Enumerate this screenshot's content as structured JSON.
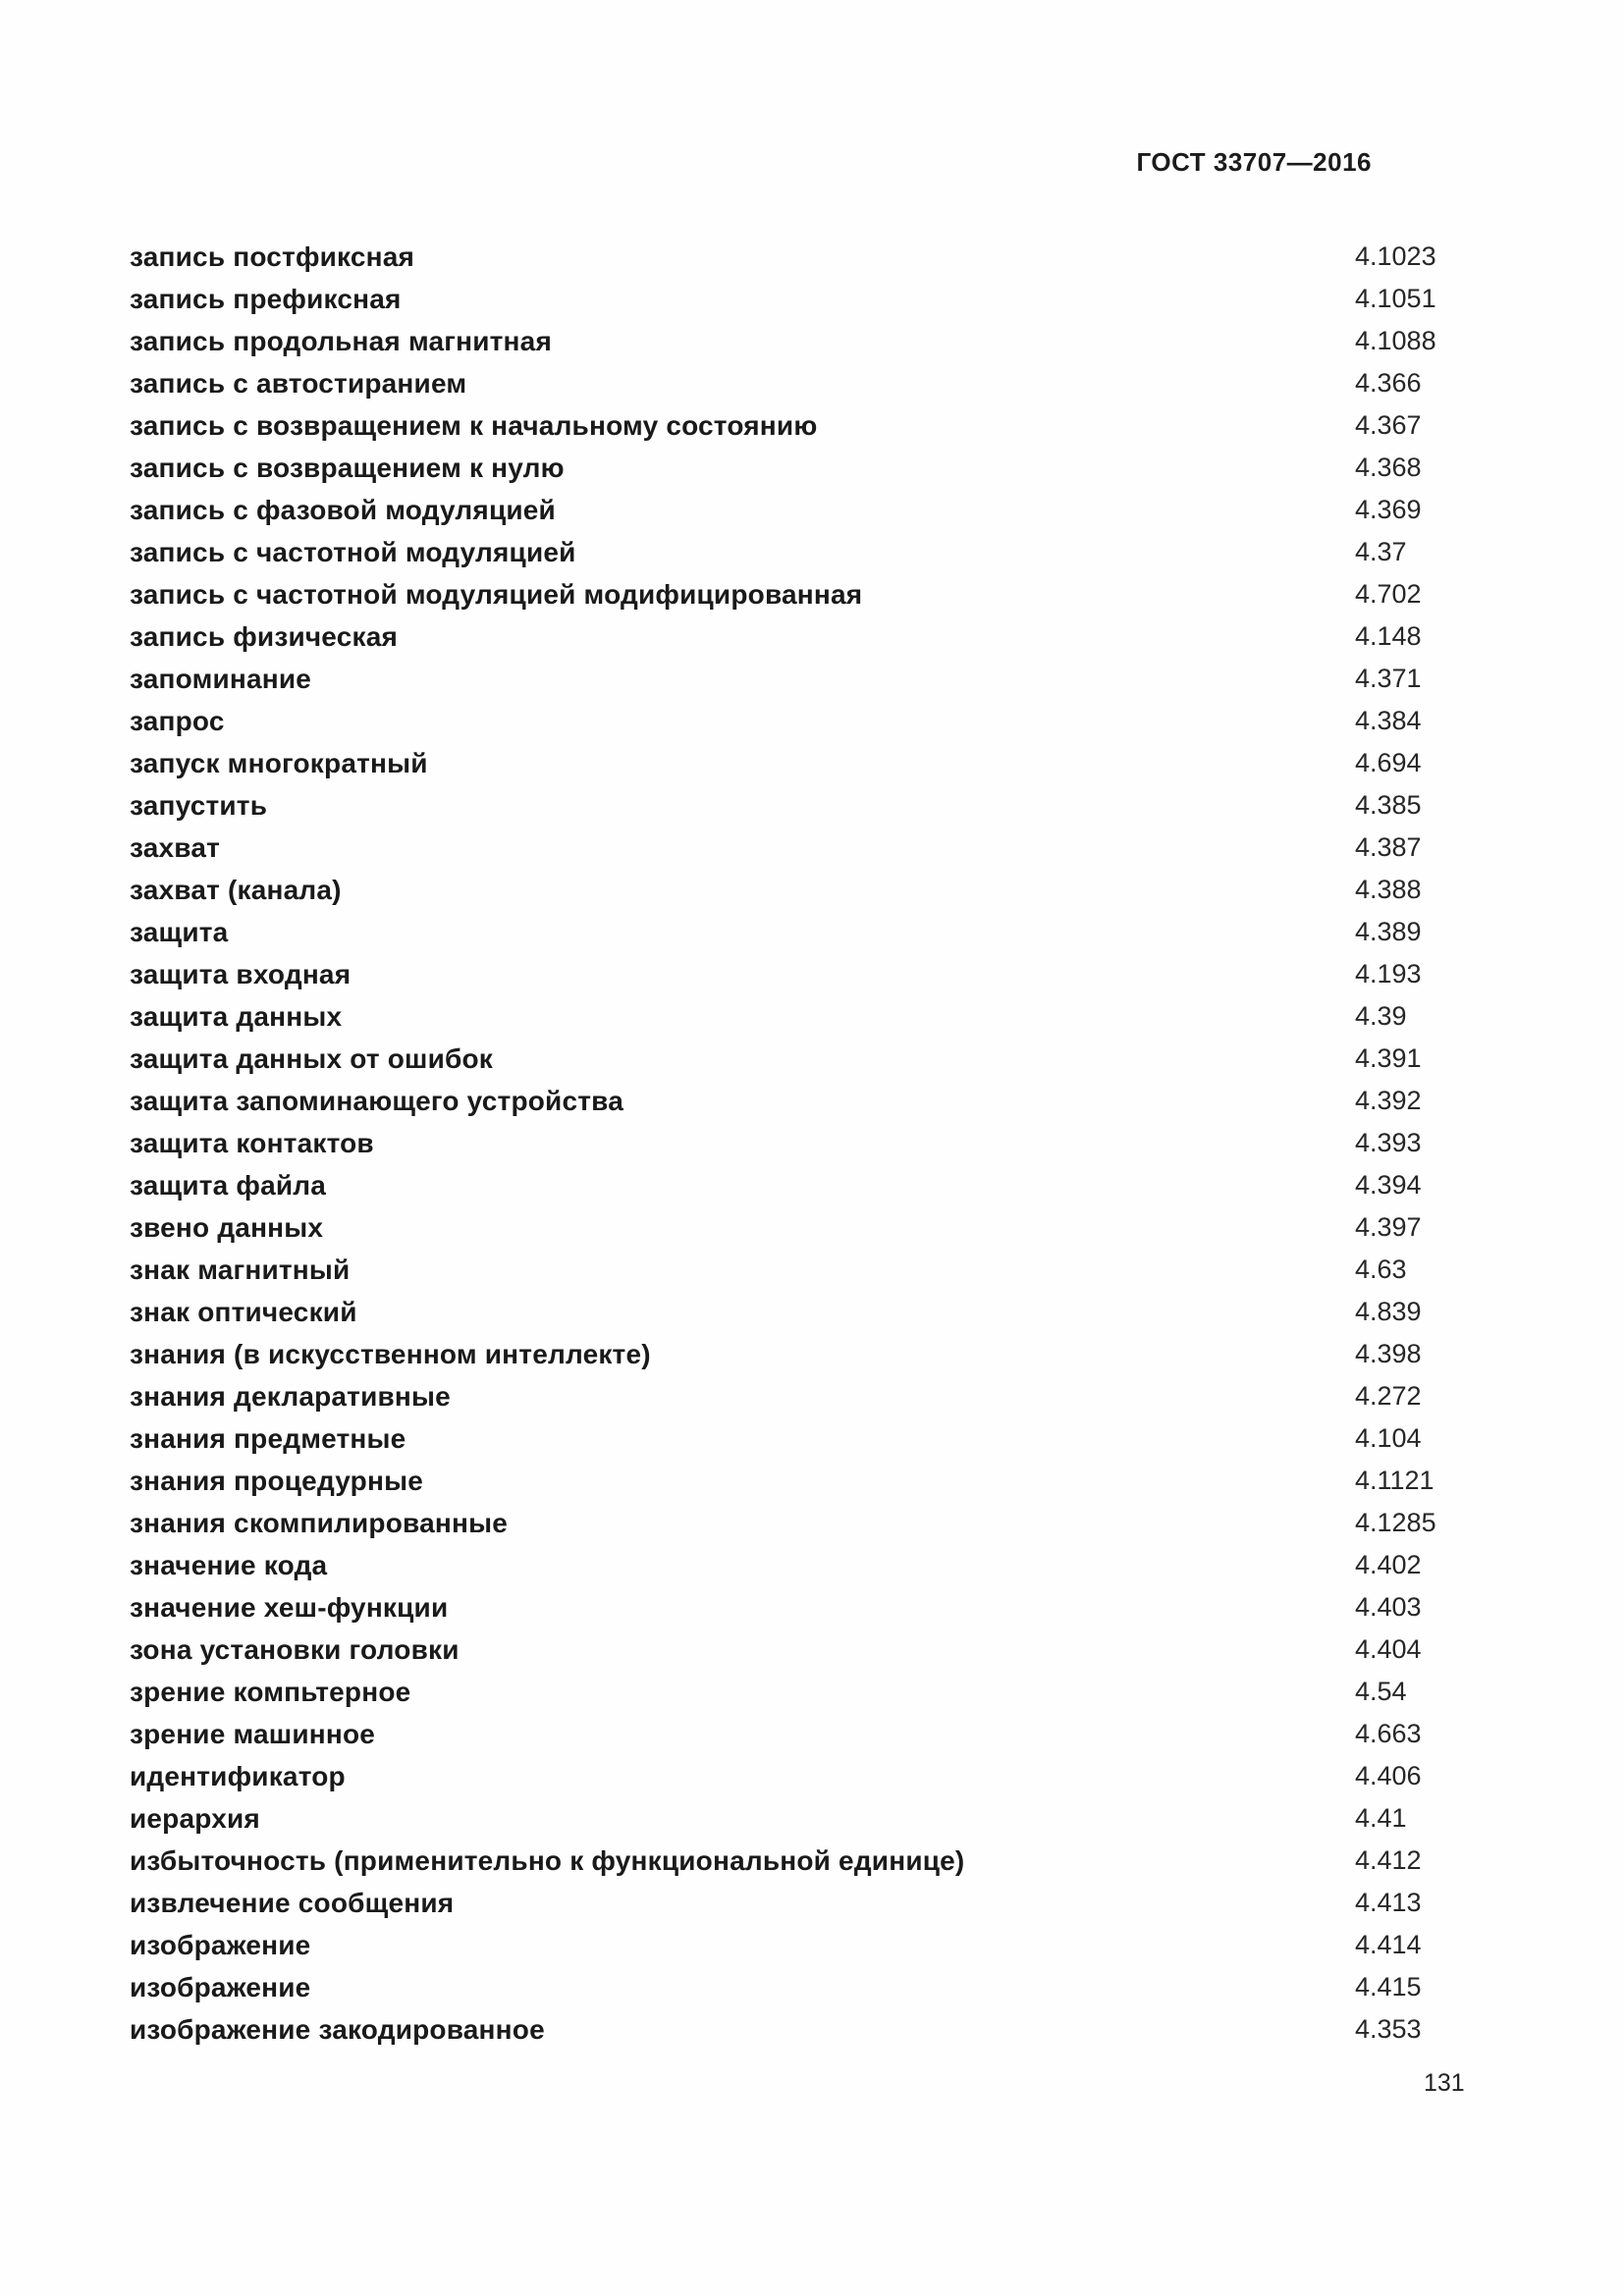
{
  "document": {
    "standard_code": "ГОСТ 33707—2016",
    "page_number": "131"
  },
  "index": {
    "entries": [
      {
        "term": "запись постфиксная",
        "ref": "4.1023"
      },
      {
        "term": "запись префиксная",
        "ref": "4.1051"
      },
      {
        "term": "запись продольная магнитная",
        "ref": "4.1088"
      },
      {
        "term": "запись с автостиранием",
        "ref": "4.366"
      },
      {
        "term": "запись с возвращением к начальному состоянию",
        "ref": "4.367"
      },
      {
        "term": "запись с возвращением к нулю",
        "ref": "4.368"
      },
      {
        "term": "запись с фазовой модуляцией",
        "ref": "4.369"
      },
      {
        "term": "запись с частотной модуляцией",
        "ref": "4.37"
      },
      {
        "term": "запись с частотной модуляцией модифицированная",
        "ref": "4.702"
      },
      {
        "term": "запись физическая",
        "ref": "4.148"
      },
      {
        "term": "запоминание",
        "ref": "4.371"
      },
      {
        "term": "запрос",
        "ref": "4.384"
      },
      {
        "term": "запуск многократный",
        "ref": "4.694"
      },
      {
        "term": "запустить",
        "ref": "4.385"
      },
      {
        "term": "захват",
        "ref": "4.387"
      },
      {
        "term": "захват (канала)",
        "ref": "4.388"
      },
      {
        "term": "защита",
        "ref": "4.389"
      },
      {
        "term": "защита входная",
        "ref": "4.193"
      },
      {
        "term": "защита данных",
        "ref": "4.39"
      },
      {
        "term": "защита данных от ошибок",
        "ref": "4.391"
      },
      {
        "term": "защита запоминающего устройства",
        "ref": "4.392"
      },
      {
        "term": "защита контактов",
        "ref": "4.393"
      },
      {
        "term": "защита файла",
        "ref": "4.394"
      },
      {
        "term": "звено данных",
        "ref": "4.397"
      },
      {
        "term": "знак магнитный",
        "ref": "4.63"
      },
      {
        "term": "знак оптический",
        "ref": "4.839"
      },
      {
        "term": "знания (в искусственном интеллекте)",
        "ref": "4.398"
      },
      {
        "term": "знания декларативные",
        "ref": "4.272"
      },
      {
        "term": "знания предметные",
        "ref": "4.104"
      },
      {
        "term": "знания процедурные",
        "ref": "4.1121"
      },
      {
        "term": "знания скомпилированные",
        "ref": "4.1285"
      },
      {
        "term": "значение кода",
        "ref": "4.402"
      },
      {
        "term": "значение хеш-функции",
        "ref": "4.403"
      },
      {
        "term": "зона установки головки",
        "ref": "4.404"
      },
      {
        "term": "зрение компьтерное",
        "ref": "4.54"
      },
      {
        "term": "зрение машинное",
        "ref": "4.663"
      },
      {
        "term": "идентификатор",
        "ref": "4.406"
      },
      {
        "term": "иерархия",
        "ref": "4.41"
      },
      {
        "term": "избыточность (применительно к функциональной единице)",
        "ref": "4.412"
      },
      {
        "term": "извлечение сообщения",
        "ref": "4.413"
      },
      {
        "term": "изображение",
        "ref": "4.414"
      },
      {
        "term": "изображение",
        "ref": "4.415"
      },
      {
        "term": "изображение закодированное",
        "ref": "4.353"
      }
    ]
  }
}
